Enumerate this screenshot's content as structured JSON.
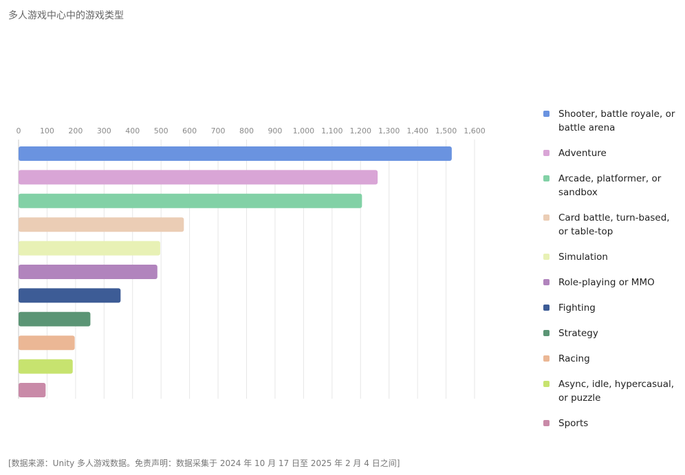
{
  "title": "多人游戏中心中的游戏类型",
  "footer": "[数据来源：Unity 多人游戏数据。免责声明：数据采集于 2024 年 10 月 17 日至 2025 年 2 月 4 日之间]",
  "chart_data": {
    "type": "bar",
    "orientation": "horizontal",
    "xlim": [
      0,
      1600
    ],
    "xticks": [
      0,
      100,
      200,
      300,
      400,
      500,
      600,
      700,
      800,
      900,
      1000,
      1100,
      1200,
      1300,
      1400,
      1500,
      1600
    ],
    "xtick_labels": [
      "0",
      "100",
      "200",
      "300",
      "400",
      "500",
      "600",
      "700",
      "800",
      "900",
      "1,000",
      "1,100",
      "1,200",
      "1,300",
      "1,400",
      "1,500",
      "1,600"
    ],
    "grid": true,
    "legend_position": "right",
    "series": [
      {
        "name": "Shooter, battle royale, or battle arena",
        "value": 1520,
        "color": "#6a93e0"
      },
      {
        "name": "Adventure",
        "value": 1260,
        "color": "#d9a5d6"
      },
      {
        "name": "Arcade, platformer, or sandbox",
        "value": 1205,
        "color": "#82d1a6"
      },
      {
        "name": "Card battle, turn-based, or table-top",
        "value": 580,
        "color": "#ebcdb5"
      },
      {
        "name": "Simulation",
        "value": 497,
        "color": "#e8f1b5"
      },
      {
        "name": "Role-playing or MMO",
        "value": 487,
        "color": "#b184bd"
      },
      {
        "name": "Fighting",
        "value": 358,
        "color": "#3d5c96"
      },
      {
        "name": "Strategy",
        "value": 252,
        "color": "#5b9575"
      },
      {
        "name": "Racing",
        "value": 197,
        "color": "#ebb795"
      },
      {
        "name": "Async, idle, hypercasual, or puzzle",
        "value": 190,
        "color": "#c7e36f"
      },
      {
        "name": "Sports",
        "value": 95,
        "color": "#c98aa8"
      }
    ]
  }
}
